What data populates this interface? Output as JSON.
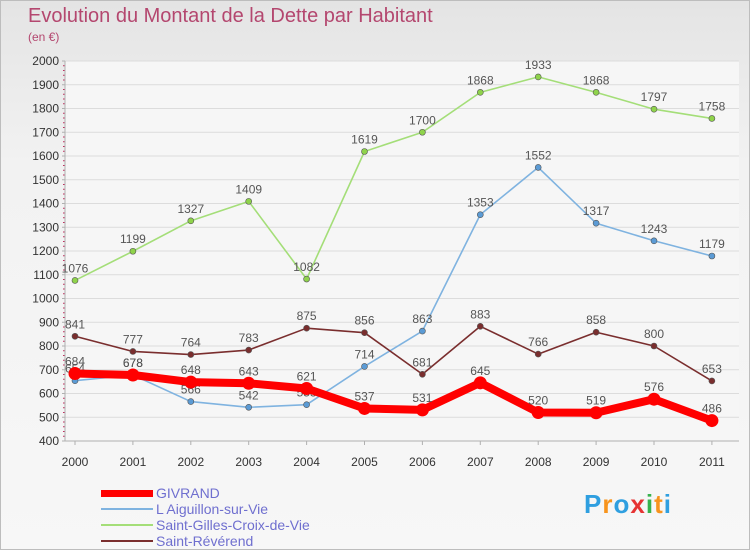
{
  "title": "Evolution du Montant de la Dette par Habitant",
  "subtitle": "(en €)",
  "logo_text": "Proxiti",
  "chart_data": {
    "type": "line",
    "categories": [
      "2000",
      "2001",
      "2002",
      "2003",
      "2004",
      "2005",
      "2006",
      "2007",
      "2008",
      "2009",
      "2010",
      "2011"
    ],
    "ylim": [
      400,
      2000
    ],
    "yticks": [
      400,
      500,
      600,
      700,
      800,
      900,
      1000,
      1100,
      1200,
      1300,
      1400,
      1500,
      1600,
      1700,
      1800,
      1900,
      2000
    ],
    "grid": "horizontal",
    "legend_placement": "bottom-left",
    "series": [
      {
        "name": "Saint-Gilles-Croix-de-Vie",
        "color": "#8fd34b",
        "line_color": "#a4de78",
        "label_color": "#555555",
        "values": [
          1076,
          1199,
          1327,
          1409,
          1082,
          1619,
          1700,
          1868,
          1933,
          1868,
          1797,
          1758
        ]
      },
      {
        "name": "L  Aiguillon-sur-Vie",
        "color": "#5b9bd5",
        "line_color": "#7fb3e0",
        "label_color": "#555555",
        "values": [
          654,
          678,
          566,
          542,
          553,
          714,
          863,
          1353,
          1552,
          1317,
          1243,
          1179
        ]
      },
      {
        "name": "Saint-Révérend",
        "color": "#7a2e2e",
        "line_color": "#7a2e2e",
        "label_color": "#555555",
        "values": [
          841,
          777,
          764,
          783,
          875,
          856,
          681,
          883,
          766,
          858,
          800,
          653
        ]
      },
      {
        "name": "GIVRAND",
        "color": "#ff0000",
        "line_color": "#ff0000",
        "label_color": "#555555",
        "values": [
          684,
          678,
          648,
          643,
          621,
          537,
          531,
          645,
          520,
          519,
          576,
          486
        ]
      }
    ],
    "legend_order": [
      "GIVRAND",
      "L  Aiguillon-sur-Vie",
      "Saint-Gilles-Croix-de-Vie",
      "Saint-Révérend"
    ]
  }
}
